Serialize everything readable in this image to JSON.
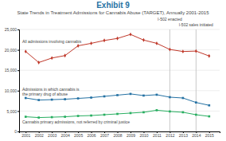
{
  "chart_data": {
    "type": "line",
    "title": "Exhibit 9",
    "subtitle": "State Trends in Treatment Admissions for Cannabis Abuse (TARGET), Annually 2001-2015",
    "x": [
      2001,
      2002,
      2003,
      2004,
      2005,
      2006,
      2007,
      2008,
      2009,
      2010,
      2011,
      2012,
      2013,
      2014,
      2015
    ],
    "series": [
      {
        "name": "All admissions involving cannabis",
        "color": "#c0392b",
        "marker": "diamond",
        "values": [
          19600,
          16900,
          18000,
          18600,
          21000,
          21600,
          22300,
          22800,
          23800,
          22400,
          21600,
          20100,
          19600,
          19700,
          18500
        ]
      },
      {
        "name": "Admissions in which cannabis is\nthe primary drug of abuse",
        "color": "#2471a3",
        "marker": "square",
        "values": [
          8200,
          7700,
          7800,
          7900,
          8100,
          8300,
          8600,
          8900,
          9200,
          8800,
          9000,
          8400,
          8200,
          7100,
          6400
        ]
      },
      {
        "name": "Cannabis primary admissions, not referred by criminal justice",
        "color": "#27ae60",
        "marker": "square",
        "values": [
          3600,
          3400,
          3500,
          3600,
          3800,
          3900,
          4100,
          4300,
          4500,
          4700,
          5200,
          4900,
          4700,
          4100,
          3700
        ]
      }
    ],
    "vlines": [
      {
        "x": 2012,
        "label": "I-502 enacted"
      },
      {
        "x": 2014,
        "label": "I-502 sales initiated"
      }
    ],
    "xlim": [
      2000.5,
      2015.8
    ],
    "xticks": [
      2001,
      2002,
      2003,
      2004,
      2005,
      2006,
      2007,
      2008,
      2009,
      2010,
      2011,
      2012,
      2013,
      2014,
      2015
    ],
    "ylim": [
      0,
      25000
    ],
    "yticks": [
      0,
      {
        "value": 5000,
        "label": "5,000"
      },
      {
        "value": 10000,
        "label": "10,000"
      },
      {
        "value": 15000,
        "label": "15,000"
      },
      {
        "value": 20000,
        "label": "20,000"
      },
      {
        "value": 25000,
        "label": "25,000"
      }
    ],
    "grid": true
  }
}
